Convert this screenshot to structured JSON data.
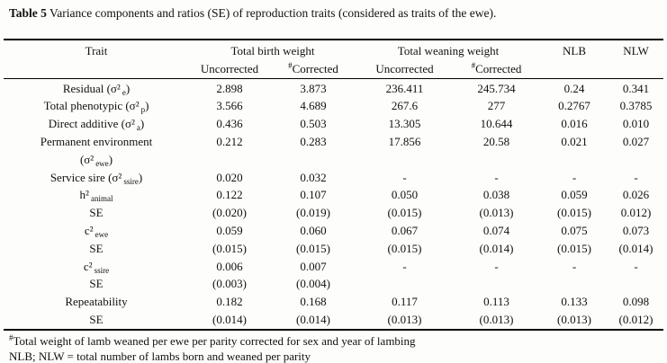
{
  "title": {
    "label": "Table 5",
    "text": " Variance components and ratios (SE) of reproduction traits (considered as traits of the ewe)."
  },
  "table": {
    "trait_header": "Trait",
    "groups": [
      "Total birth weight",
      "Total weaning weight",
      "NLB",
      "NLW"
    ],
    "sub_headers": [
      {
        "sup": "",
        "label": "Uncorrected"
      },
      {
        "sup": "#",
        "label": "Corrected"
      },
      {
        "sup": "",
        "label": "Uncorrected"
      },
      {
        "sup": "#",
        "label": "Corrected"
      }
    ],
    "rows": [
      {
        "trait": [
          {
            "t": "text",
            "v": "Residual (σ²"
          },
          {
            "t": "sub",
            "v": "e"
          },
          {
            "t": "text",
            "v": ")"
          }
        ],
        "values": [
          "2.898",
          "3.873",
          "236.411",
          "245.734",
          "0.24",
          "0.341"
        ]
      },
      {
        "trait": [
          {
            "t": "text",
            "v": "Total phenotypic (σ²"
          },
          {
            "t": "sub",
            "v": "p"
          },
          {
            "t": "text",
            "v": ")"
          }
        ],
        "values": [
          "3.566",
          "4.689",
          "267.6",
          "277",
          "0.2767",
          "0.3785"
        ]
      },
      {
        "trait": [
          {
            "t": "text",
            "v": "Direct additive (σ²"
          },
          {
            "t": "sub",
            "v": "a"
          },
          {
            "t": "text",
            "v": ")"
          }
        ],
        "values": [
          "0.436",
          "0.503",
          "13.305",
          "10.644",
          "0.016",
          "0.010"
        ]
      },
      {
        "trait": [
          {
            "t": "text",
            "v": "Permanent environment"
          },
          {
            "t": "br"
          },
          {
            "t": "text",
            "v": "(σ²"
          },
          {
            "t": "sub",
            "v": "ewe"
          },
          {
            "t": "text",
            "v": ")"
          }
        ],
        "values": [
          "0.212",
          "0.283",
          "17.856",
          "20.58",
          "0.021",
          "0.027"
        ]
      },
      {
        "trait": [
          {
            "t": "text",
            "v": "Service sire (σ²"
          },
          {
            "t": "sub",
            "v": "ssire"
          },
          {
            "t": "text",
            "v": ")"
          }
        ],
        "values": [
          "0.020",
          "0.032",
          "-",
          "-",
          "-",
          "-"
        ]
      },
      {
        "trait": [
          {
            "t": "text",
            "v": "h²"
          },
          {
            "t": "sub",
            "v": "animal"
          }
        ],
        "values": [
          "0.122",
          "0.107",
          "0.050",
          "0.038",
          "0.059",
          "0.026"
        ]
      },
      {
        "trait": [
          {
            "t": "text",
            "v": "SE"
          }
        ],
        "values": [
          "(0.020)",
          "(0.019)",
          "(0.015)",
          "(0.013)",
          "(0.015)",
          "0.012)"
        ]
      },
      {
        "trait": [
          {
            "t": "text",
            "v": "c²"
          },
          {
            "t": "sub",
            "v": "ewe"
          }
        ],
        "values": [
          "0.059",
          "0.060",
          "0.067",
          "0.074",
          "0.075",
          "0.073"
        ]
      },
      {
        "trait": [
          {
            "t": "text",
            "v": "SE"
          }
        ],
        "values": [
          "(0.015)",
          "(0.015)",
          "(0.015)",
          "(0.014)",
          "(0.015)",
          "(0.014)"
        ]
      },
      {
        "trait": [
          {
            "t": "text",
            "v": "c²"
          },
          {
            "t": "sub",
            "v": "ssire"
          }
        ],
        "values": [
          "0.006",
          "0.007",
          "-",
          "-",
          "-",
          "-"
        ]
      },
      {
        "trait": [
          {
            "t": "text",
            "v": "SE"
          }
        ],
        "values": [
          "(0.003)",
          "(0.004)",
          "",
          "",
          "",
          ""
        ]
      },
      {
        "trait": [
          {
            "t": "text",
            "v": "Repeatability"
          }
        ],
        "values": [
          "0.182",
          "0.168",
          "0.117",
          "0.113",
          "0.133",
          "0.098"
        ]
      },
      {
        "trait": [
          {
            "t": "text",
            "v": "SE"
          }
        ],
        "values": [
          "(0.014)",
          "(0.014)",
          "(0.013)",
          "(0.013)",
          "(0.013)",
          "(0.012)"
        ]
      }
    ]
  },
  "footnotes": [
    {
      "sup": "#",
      "text": "Total weight of lamb weaned per ewe per parity corrected for sex and year of lambing"
    },
    {
      "sup": "",
      "text": "NLB; NLW = total number of lambs born and weaned per parity"
    }
  ]
}
